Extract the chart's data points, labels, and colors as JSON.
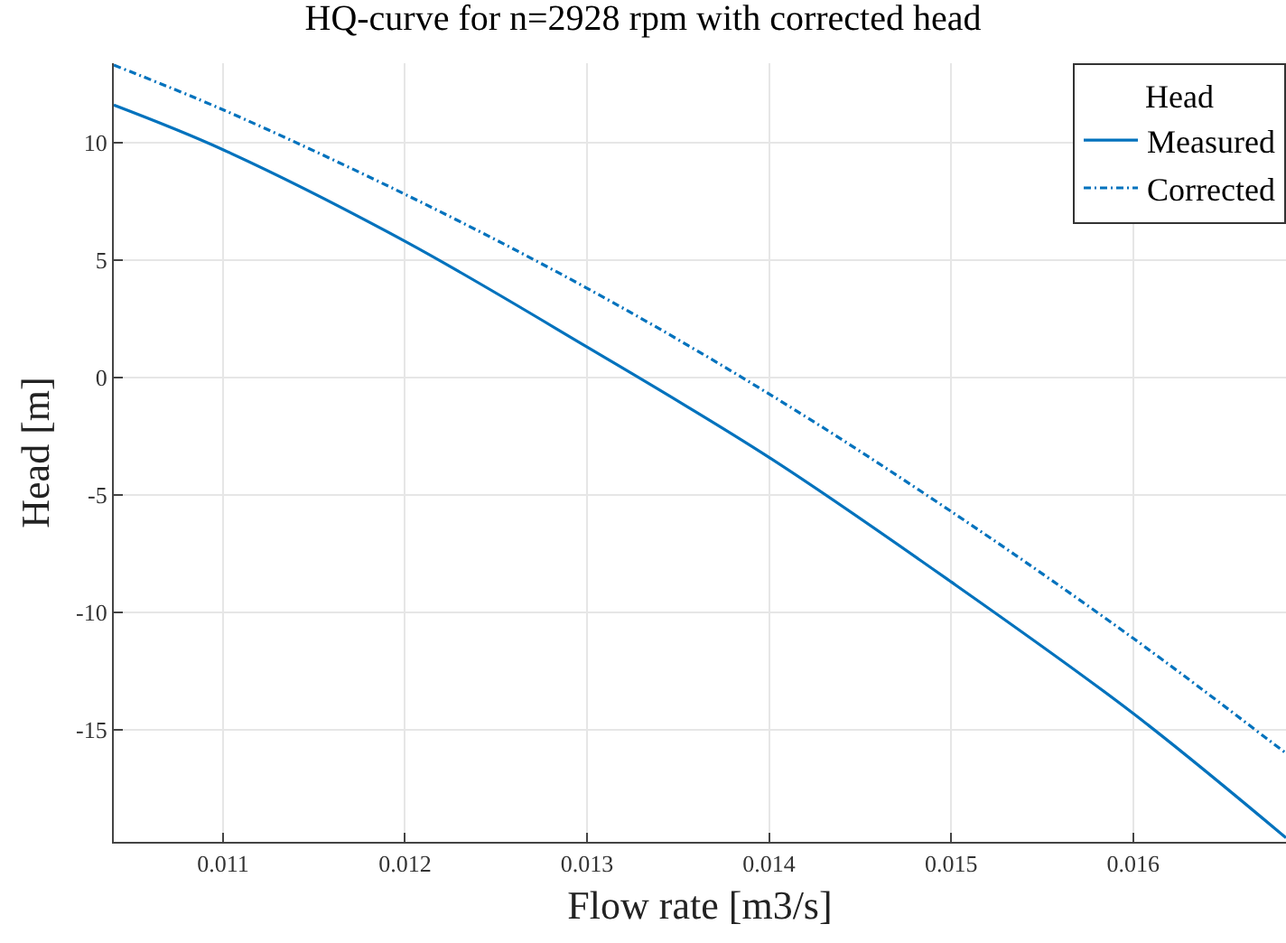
{
  "chart_data": {
    "type": "line",
    "title": "HQ-curve for n=2928 rpm with corrected head",
    "xlabel": "Flow rate [m3/s]",
    "ylabel": "Head [m]",
    "legend_title": "Head",
    "x": [
      0.0104,
      0.011,
      0.012,
      0.013,
      0.014,
      0.015,
      0.016,
      0.01684
    ],
    "series": [
      {
        "name": "Measured",
        "color": "#0072bd",
        "line_style": "solid",
        "values": [
          11.6,
          9.7,
          5.8,
          1.3,
          -3.4,
          -8.7,
          -14.3,
          -19.6
        ]
      },
      {
        "name": "Corrected",
        "color": "#0072bd",
        "line_style": "dashed",
        "values": [
          13.3,
          11.4,
          7.8,
          3.8,
          -0.7,
          -5.7,
          -11.1,
          -16.0
        ]
      }
    ],
    "xlim": [
      0.0104,
      0.01684
    ],
    "ylim": [
      -19.77,
      13.38
    ],
    "xticks": [
      0.011,
      0.012,
      0.013,
      0.014,
      0.015,
      0.016
    ],
    "yticks": [
      -15,
      -10,
      -5,
      0,
      5,
      10
    ],
    "grid": true,
    "legend": "top right",
    "marker": "none"
  }
}
